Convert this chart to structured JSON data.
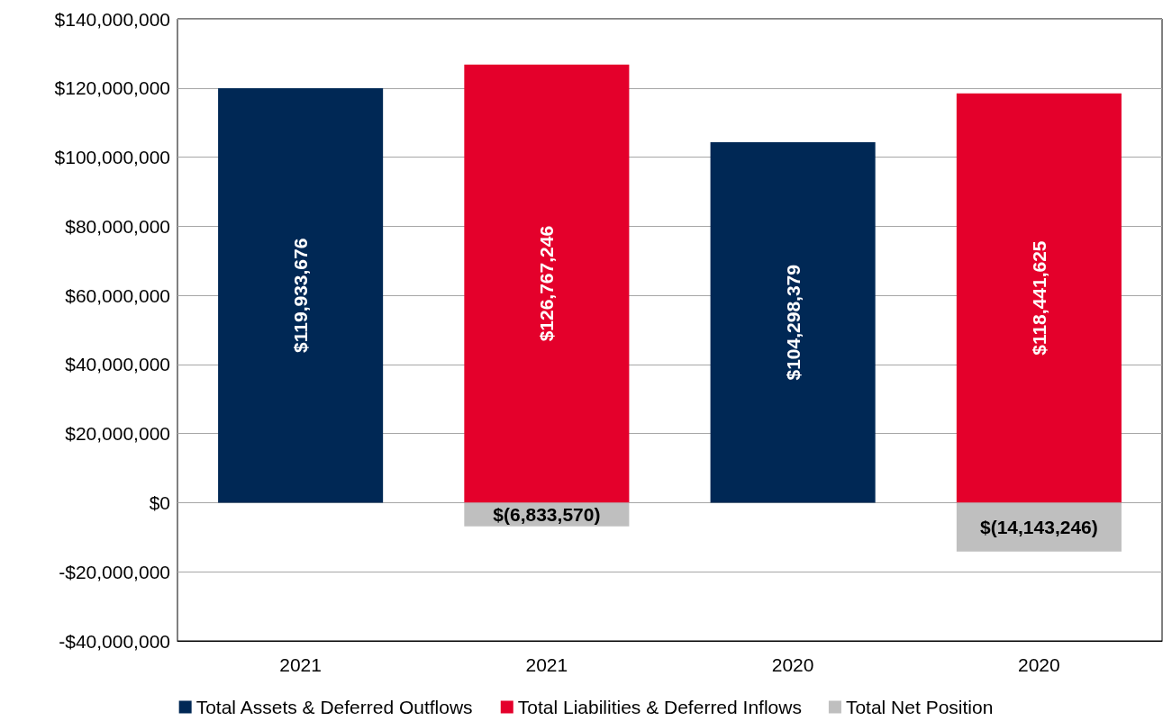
{
  "chart_data": {
    "type": "bar",
    "stacked": true,
    "categories": [
      "2021",
      "2021",
      "2020",
      "2020"
    ],
    "series": [
      {
        "name": "Total Assets & Deferred Outflows",
        "color": "#002855",
        "values": [
          119933676,
          null,
          104298379,
          null
        ],
        "value_labels": [
          "$119,933,676",
          null,
          "$104,298,379",
          null
        ]
      },
      {
        "name": "Total Liabilities & Deferred Inflows",
        "color": "#e4002b",
        "values": [
          null,
          126767246,
          null,
          118441625
        ],
        "value_labels": [
          null,
          "$126,767,246",
          null,
          "$118,441,625"
        ]
      },
      {
        "name": "Total Net Position",
        "color": "#bfbfbf",
        "values": [
          null,
          -6833570,
          null,
          -14143246
        ],
        "value_labels": [
          null,
          "$(6,833,570)",
          null,
          "$(14,143,246)"
        ]
      }
    ],
    "ylim": [
      -40000000,
      140000000
    ],
    "yticks": [
      {
        "value": -40000000,
        "label": "-$40,000,000"
      },
      {
        "value": -20000000,
        "label": "-$20,000,000"
      },
      {
        "value": 0,
        "label": "$0"
      },
      {
        "value": 20000000,
        "label": "$20,000,000"
      },
      {
        "value": 40000000,
        "label": "$40,000,000"
      },
      {
        "value": 60000000,
        "label": "$60,000,000"
      },
      {
        "value": 80000000,
        "label": "$80,000,000"
      },
      {
        "value": 100000000,
        "label": "$100,000,000"
      },
      {
        "value": 120000000,
        "label": "$120,000,000"
      },
      {
        "value": 140000000,
        "label": "$140,000,000"
      }
    ],
    "grid": "y",
    "legend": "bottom"
  }
}
